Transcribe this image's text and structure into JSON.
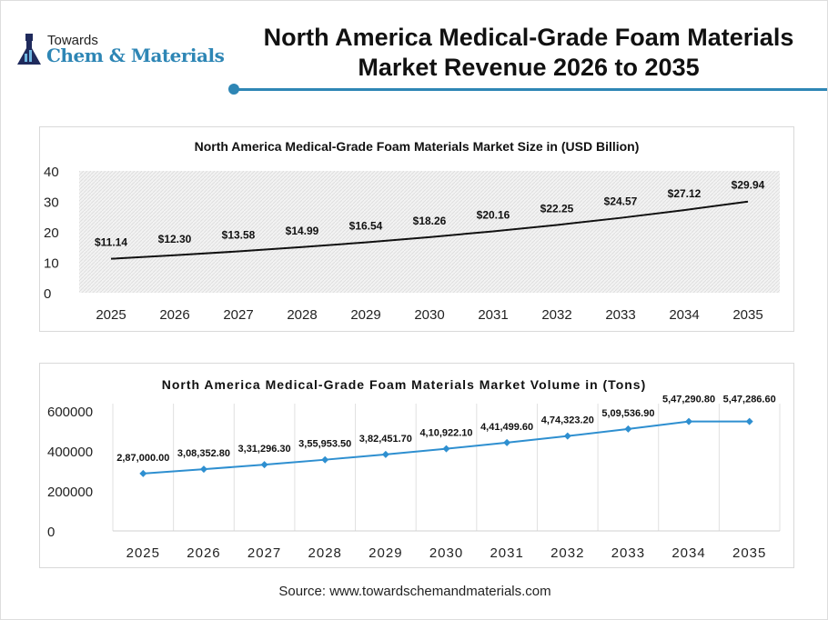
{
  "header": {
    "logo": {
      "top": "Towards",
      "main": "Chem & Materials"
    },
    "title_line1": "North America Medical-Grade Foam Materials",
    "title_line2": "Market Revenue 2026 to 2035",
    "accent_color": "#2e86b5"
  },
  "chart_data": [
    {
      "type": "line",
      "title": "North America Medical-Grade Foam Materials Market Size in (USD Billion)",
      "categories": [
        "2025",
        "2026",
        "2027",
        "2028",
        "2029",
        "2030",
        "2031",
        "2032",
        "2033",
        "2034",
        "2035"
      ],
      "values": [
        11.14,
        12.3,
        13.58,
        14.99,
        16.54,
        18.26,
        20.16,
        22.25,
        24.57,
        27.12,
        29.94
      ],
      "labels": [
        "$11.14",
        "$12.30",
        "$13.58",
        "$14.99",
        "$16.54",
        "$18.26",
        "$20.16",
        "$22.25",
        "$24.57",
        "$27.12",
        "$29.94"
      ],
      "yticks": [
        "0",
        "10",
        "20",
        "30",
        "40"
      ],
      "ylim": [
        0,
        40
      ],
      "line_color": "#111111",
      "grid": "hatched background"
    },
    {
      "type": "line",
      "title": "North America Medical-Grade Foam Materials Market  Volume in (Tons)",
      "categories": [
        "2025",
        "2026",
        "2027",
        "2028",
        "2029",
        "2030",
        "2031",
        "2032",
        "2033",
        "2034",
        "2035"
      ],
      "values": [
        287000.0,
        308352.8,
        331296.3,
        355953.5,
        382451.7,
        410922.1,
        441499.6,
        474323.2,
        509536.9,
        547290.8,
        547286.6
      ],
      "labels": [
        "2,87,000.00",
        "3,08,352.80",
        "3,31,296.30",
        "3,55,953.50",
        "3,82,451.70",
        "4,10,922.10",
        "4,41,499.60",
        "4,74,323.20",
        "5,09,536.90",
        "5,47,290.80",
        "5,47,286.60"
      ],
      "yticks": [
        "0",
        "200000",
        "400000",
        "600000"
      ],
      "ylim": [
        0,
        600000
      ],
      "line_color": "#2e8fd0",
      "grid": "vertical"
    }
  ],
  "footer": {
    "source": "Source: www.towardschemandmaterials.com"
  }
}
